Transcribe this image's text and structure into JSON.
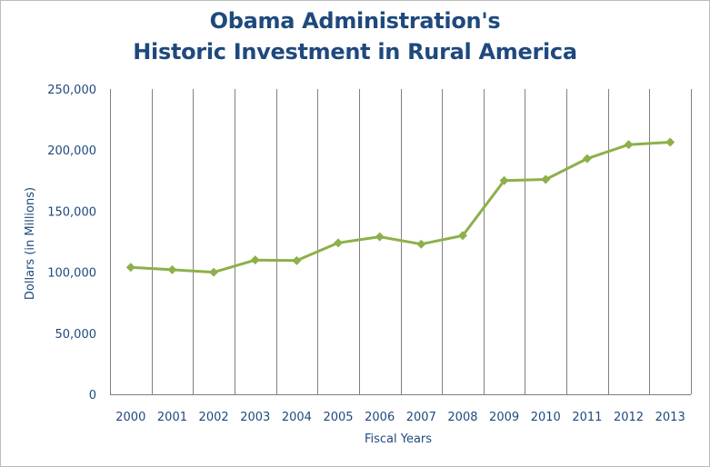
{
  "chart_data": {
    "type": "line",
    "title_line1": "Obama Administration's",
    "title_line2": "Historic Investment in Rural America",
    "xlabel": "Fiscal Years",
    "ylabel": "Dollars (in Millions)",
    "ylim": [
      0,
      250000
    ],
    "yticks": [
      "0",
      "50,000",
      "100,000",
      "150,000",
      "200,000",
      "250,000"
    ],
    "ytick_values": [
      0,
      50000,
      100000,
      150000,
      200000,
      250000
    ],
    "categories": [
      "2000",
      "2001",
      "2002",
      "2003",
      "2004",
      "2005",
      "2006",
      "2007",
      "2008",
      "2009",
      "2010",
      "2011",
      "2012",
      "2013"
    ],
    "values": [
      104000,
      102000,
      100000,
      110000,
      109500,
      124000,
      129000,
      123000,
      130000,
      175000,
      176000,
      193000,
      204500,
      206500
    ],
    "grid": "vertical",
    "line_color": "#8db04a",
    "text_color": "#1f497d",
    "grid_color": "#808080"
  }
}
